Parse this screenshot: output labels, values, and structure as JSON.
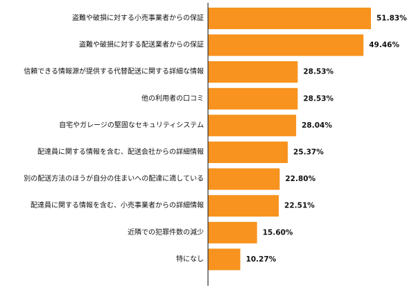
{
  "chart_data": {
    "type": "bar",
    "orientation": "horizontal",
    "title": "",
    "xlabel": "",
    "ylabel": "",
    "categories": [
      "盗難や破損に対する小売事業者からの保証",
      "盗難や破損に対する配送業者からの保証",
      "信頼できる情報源が提供する代替配送に関する詳細な情報",
      "他の利用者の口コミ",
      "自宅やガレージの堅固なセキュリティシステム",
      "配達員に関する情報を含む、配送会社からの詳細情報",
      "別の配送方法のほうが自分の住まいへの配達に適している",
      "配達員に関する情報を含む、小売事業者からの詳細情報",
      "近隣での犯罪件数の減少",
      "特になし"
    ],
    "values": [
      51.83,
      49.46,
      28.53,
      28.53,
      28.04,
      25.37,
      22.8,
      22.51,
      15.6,
      10.27
    ],
    "value_labels": [
      "51.83%",
      "49.46%",
      "28.53%",
      "28.53%",
      "28.04%",
      "25.37%",
      "22.80%",
      "22.51%",
      "15.60%",
      "10.27%"
    ],
    "xlim": [
      0,
      60
    ],
    "grid": false,
    "legend": "none",
    "bar_color": "#F7931E",
    "axis_color": "#333333"
  }
}
